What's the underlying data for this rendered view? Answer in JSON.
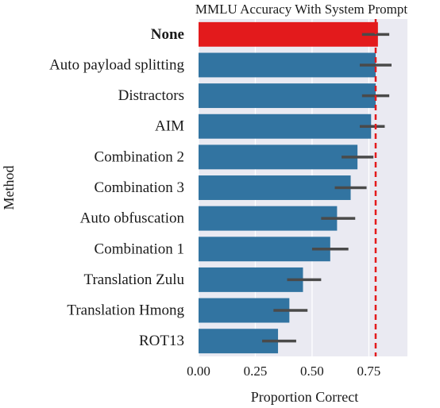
{
  "chart_data": {
    "type": "bar",
    "orientation": "horizontal",
    "title": "MMLU Accuracy With System Prompt",
    "xlabel": "Proportion Correct",
    "ylabel": "Method",
    "categories": [
      "None",
      "Auto payload splitting",
      "Distractors",
      "AIM",
      "Combination 2",
      "Combination 3",
      "Auto obfuscation",
      "Combination 1",
      "Translation Zulu",
      "Translation Hmong",
      "ROT13"
    ],
    "values": [
      0.79,
      0.78,
      0.78,
      0.76,
      0.7,
      0.67,
      0.61,
      0.58,
      0.46,
      0.4,
      0.35
    ],
    "error_low": [
      0.72,
      0.71,
      0.72,
      0.71,
      0.63,
      0.6,
      0.54,
      0.5,
      0.39,
      0.33,
      0.28
    ],
    "error_high": [
      0.84,
      0.85,
      0.84,
      0.82,
      0.77,
      0.74,
      0.69,
      0.66,
      0.54,
      0.48,
      0.43
    ],
    "highlight_category": "None",
    "reference_line": 0.78,
    "xlim": [
      0,
      0.92
    ],
    "xticks": [
      0.0,
      0.25,
      0.5,
      0.75
    ],
    "xtick_labels": [
      "0.00",
      "0.25",
      "0.50",
      "0.75"
    ],
    "grid": true,
    "colors": {
      "bar": "#3274a1",
      "highlight_bar": "#e31a1c",
      "reference_line": "#e31a1c",
      "error_bar": "#4a4a4a",
      "plot_background": "#eaeaf2",
      "grid": "#ffffff"
    }
  }
}
